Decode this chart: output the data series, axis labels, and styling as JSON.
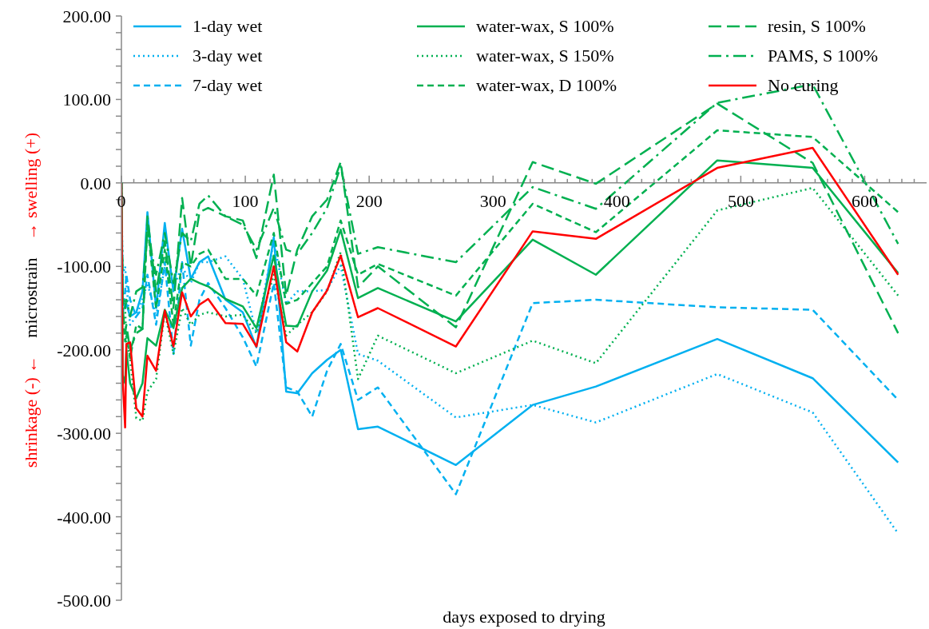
{
  "chart_data": {
    "type": "line",
    "xlabel": "days exposed to drying",
    "ylabel": "shrinkage (-) ←   microstrain   → swelling (+)",
    "x": [
      0,
      1,
      3,
      4,
      7,
      12,
      17,
      21,
      28,
      35,
      42,
      49,
      56,
      63,
      70,
      84,
      98,
      109,
      123,
      133,
      142,
      154,
      166,
      177,
      191,
      207,
      270,
      332,
      383,
      481,
      558,
      627
    ],
    "series": [
      {
        "name": "1-day wet",
        "color": "#00b0f0",
        "line_style": "solid",
        "values": [
          0,
          -140,
          -150,
          -145,
          -160,
          -155,
          -130,
          -35,
          -150,
          -48,
          -130,
          -55,
          -115,
          -95,
          -88,
          -140,
          -155,
          -197,
          -65,
          -250,
          -252,
          -228,
          -212,
          -200,
          -295,
          -292,
          -338,
          -266,
          -244,
          -187,
          -234,
          -335
        ]
      },
      {
        "name": "3-day wet",
        "color": "#00b0f0",
        "line_style": "dotted",
        "values": [
          0,
          -110,
          -100,
          -120,
          -170,
          -160,
          -140,
          -120,
          -160,
          -100,
          -125,
          -100,
          -120,
          -95,
          -95,
          -88,
          -115,
          -180,
          -70,
          -145,
          -130,
          -130,
          -128,
          -99,
          -205,
          -213,
          -281,
          -266,
          -287,
          -229,
          -275,
          -420
        ]
      },
      {
        "name": "7-day wet",
        "color": "#00b0f0",
        "line_style": "dashed",
        "values": [
          0,
          -160,
          -130,
          -110,
          -140,
          -160,
          -150,
          -110,
          -170,
          -95,
          -205,
          -95,
          -195,
          -140,
          -120,
          -150,
          -185,
          -220,
          -120,
          -245,
          -250,
          -280,
          -225,
          -193,
          -260,
          -245,
          -373,
          -144,
          -140,
          -149,
          -152,
          -260
        ]
      },
      {
        "name": "water-wax, S 100%",
        "color": "#00b050",
        "line_style": "solid",
        "values": [
          0,
          -230,
          -240,
          -200,
          -240,
          -258,
          -240,
          -186,
          -195,
          -152,
          -174,
          -126,
          -115,
          -120,
          -124,
          -139,
          -148,
          -174,
          -87,
          -171,
          -172,
          -130,
          -105,
          -56,
          -138,
          -126,
          -166,
          -68,
          -110,
          27,
          18,
          -108
        ]
      },
      {
        "name": "water-wax, S 150%",
        "color": "#00b050",
        "line_style": "dotted",
        "values": [
          0,
          -140,
          -150,
          -190,
          -210,
          -282,
          -285,
          -250,
          -235,
          -155,
          -205,
          -150,
          -170,
          -158,
          -155,
          -160,
          -158,
          -180,
          -110,
          -183,
          -170,
          -155,
          -130,
          -83,
          -235,
          -183,
          -228,
          -189,
          -216,
          -33,
          -6,
          -135
        ]
      },
      {
        "name": "water-wax, D 100%",
        "color": "#00b050",
        "line_style": "dashed",
        "values": [
          0,
          -160,
          -190,
          -180,
          -210,
          -170,
          -175,
          -50,
          -150,
          -80,
          -170,
          -95,
          -100,
          -85,
          -80,
          -115,
          -115,
          -135,
          -60,
          -145,
          -140,
          -120,
          -100,
          -45,
          -110,
          -97,
          -135,
          -25,
          -59,
          63,
          55,
          -35
        ]
      },
      {
        "name": "resin, S 100%",
        "color": "#00b050",
        "line_style": "long-dashed",
        "values": [
          0,
          -150,
          -180,
          -170,
          -200,
          -180,
          -175,
          -40,
          -130,
          -70,
          -150,
          -18,
          -100,
          -35,
          -30,
          -40,
          -45,
          -90,
          10,
          -135,
          -80,
          -40,
          -20,
          25,
          -125,
          -100,
          -173,
          25,
          -1,
          95,
          24,
          -180
        ]
      },
      {
        "name": "PAMS, S 100%",
        "color": "#00b050",
        "line_style": "dash-dot",
        "values": [
          0,
          -130,
          -150,
          -140,
          -160,
          -130,
          -125,
          -60,
          -110,
          -60,
          -120,
          -60,
          -70,
          -25,
          -15,
          -40,
          -50,
          -80,
          -30,
          -80,
          -85,
          -60,
          -30,
          20,
          -85,
          -77,
          -95,
          -5,
          -31,
          96,
          118,
          -73
        ]
      },
      {
        "name": "No curing",
        "color": "#ff0000",
        "line_style": "solid",
        "values": [
          0,
          -235,
          -293,
          -193,
          -191,
          -270,
          -280,
          -207,
          -225,
          -153,
          -196,
          -131,
          -160,
          -146,
          -139,
          -168,
          -169,
          -196,
          -100,
          -191,
          -202,
          -155,
          -129,
          -87,
          -161,
          -150,
          -196,
          -58,
          -67,
          18,
          42,
          -110
        ]
      }
    ],
    "xlim": [
      0,
      650
    ],
    "xticks": [
      0,
      {
        "value": 10,
        "label": null
      },
      {
        "value": 20,
        "label": null
      },
      {
        "value": 30,
        "label": null
      },
      {
        "value": 40,
        "label": null
      },
      {
        "value": 50,
        "label": null
      },
      {
        "value": 60,
        "label": null
      },
      {
        "value": 70,
        "label": null
      },
      {
        "value": 80,
        "label": null
      },
      {
        "value": 90,
        "label": null
      },
      100,
      {
        "value": 110,
        "label": null
      },
      {
        "value": 120,
        "label": null
      },
      {
        "value": 130,
        "label": null
      },
      {
        "value": 140,
        "label": null
      },
      {
        "value": 150,
        "label": null
      },
      {
        "value": 160,
        "label": null
      },
      {
        "value": 170,
        "label": null
      },
      {
        "value": 180,
        "label": null
      },
      {
        "value": 190,
        "label": null
      },
      200,
      {
        "value": 210,
        "label": null
      },
      {
        "value": 220,
        "label": null
      },
      {
        "value": 230,
        "label": null
      },
      {
        "value": 240,
        "label": null
      },
      {
        "value": 250,
        "label": null
      },
      {
        "value": 260,
        "label": null
      },
      {
        "value": 270,
        "label": null
      },
      {
        "value": 280,
        "label": null
      },
      {
        "value": 290,
        "label": null
      },
      300,
      {
        "value": 310,
        "label": null
      },
      {
        "value": 320,
        "label": null
      },
      {
        "value": 330,
        "label": null
      },
      {
        "value": 340,
        "label": null
      },
      {
        "value": 350,
        "label": null
      },
      {
        "value": 360,
        "label": null
      },
      {
        "value": 370,
        "label": null
      },
      {
        "value": 380,
        "label": null
      },
      {
        "value": 390,
        "label": null
      },
      400,
      {
        "value": 410,
        "label": null
      },
      {
        "value": 420,
        "label": null
      },
      {
        "value": 430,
        "label": null
      },
      {
        "value": 440,
        "label": null
      },
      {
        "value": 450,
        "label": null
      },
      {
        "value": 460,
        "label": null
      },
      {
        "value": 470,
        "label": null
      },
      {
        "value": 480,
        "label": null
      },
      {
        "value": 490,
        "label": null
      },
      500,
      {
        "value": 510,
        "label": null
      },
      {
        "value": 520,
        "label": null
      },
      {
        "value": 530,
        "label": null
      },
      {
        "value": 540,
        "label": null
      },
      {
        "value": 550,
        "label": null
      },
      {
        "value": 560,
        "label": null
      },
      {
        "value": 570,
        "label": null
      },
      {
        "value": 580,
        "label": null
      },
      {
        "value": 590,
        "label": null
      },
      600,
      {
        "value": 610,
        "label": null
      },
      {
        "value": 620,
        "label": null
      },
      {
        "value": 630,
        "label": null
      },
      {
        "value": 640,
        "label": null
      }
    ],
    "ylim": [
      -500,
      200
    ],
    "yticks": [
      {
        "value": -500,
        "label": "-500.00"
      },
      {
        "value": -480,
        "label": null
      },
      {
        "value": -460,
        "label": null
      },
      {
        "value": -440,
        "label": null
      },
      {
        "value": -420,
        "label": null
      },
      {
        "value": -400,
        "label": "-400.00"
      },
      {
        "value": -380,
        "label": null
      },
      {
        "value": -360,
        "label": null
      },
      {
        "value": -340,
        "label": null
      },
      {
        "value": -320,
        "label": null
      },
      {
        "value": -300,
        "label": "-300.00"
      },
      {
        "value": -280,
        "label": null
      },
      {
        "value": -260,
        "label": null
      },
      {
        "value": -240,
        "label": null
      },
      {
        "value": -220,
        "label": null
      },
      {
        "value": -200,
        "label": "-200.00"
      },
      {
        "value": -180,
        "label": null
      },
      {
        "value": -160,
        "label": null
      },
      {
        "value": -140,
        "label": null
      },
      {
        "value": -120,
        "label": null
      },
      {
        "value": -100,
        "label": "-100.00"
      },
      {
        "value": -80,
        "label": null
      },
      {
        "value": -60,
        "label": null
      },
      {
        "value": -40,
        "label": null
      },
      {
        "value": -20,
        "label": null
      },
      {
        "value": 0,
        "label": "0.00"
      },
      {
        "value": 20,
        "label": null
      },
      {
        "value": 40,
        "label": null
      },
      {
        "value": 60,
        "label": null
      },
      {
        "value": 80,
        "label": null
      },
      {
        "value": 100,
        "label": "100.00"
      },
      {
        "value": 120,
        "label": null
      },
      {
        "value": 140,
        "label": null
      },
      {
        "value": 160,
        "label": null
      },
      {
        "value": 180,
        "label": null
      },
      {
        "value": 200,
        "label": "200.00"
      }
    ],
    "grid": false,
    "legend": "top",
    "marker": "none"
  }
}
